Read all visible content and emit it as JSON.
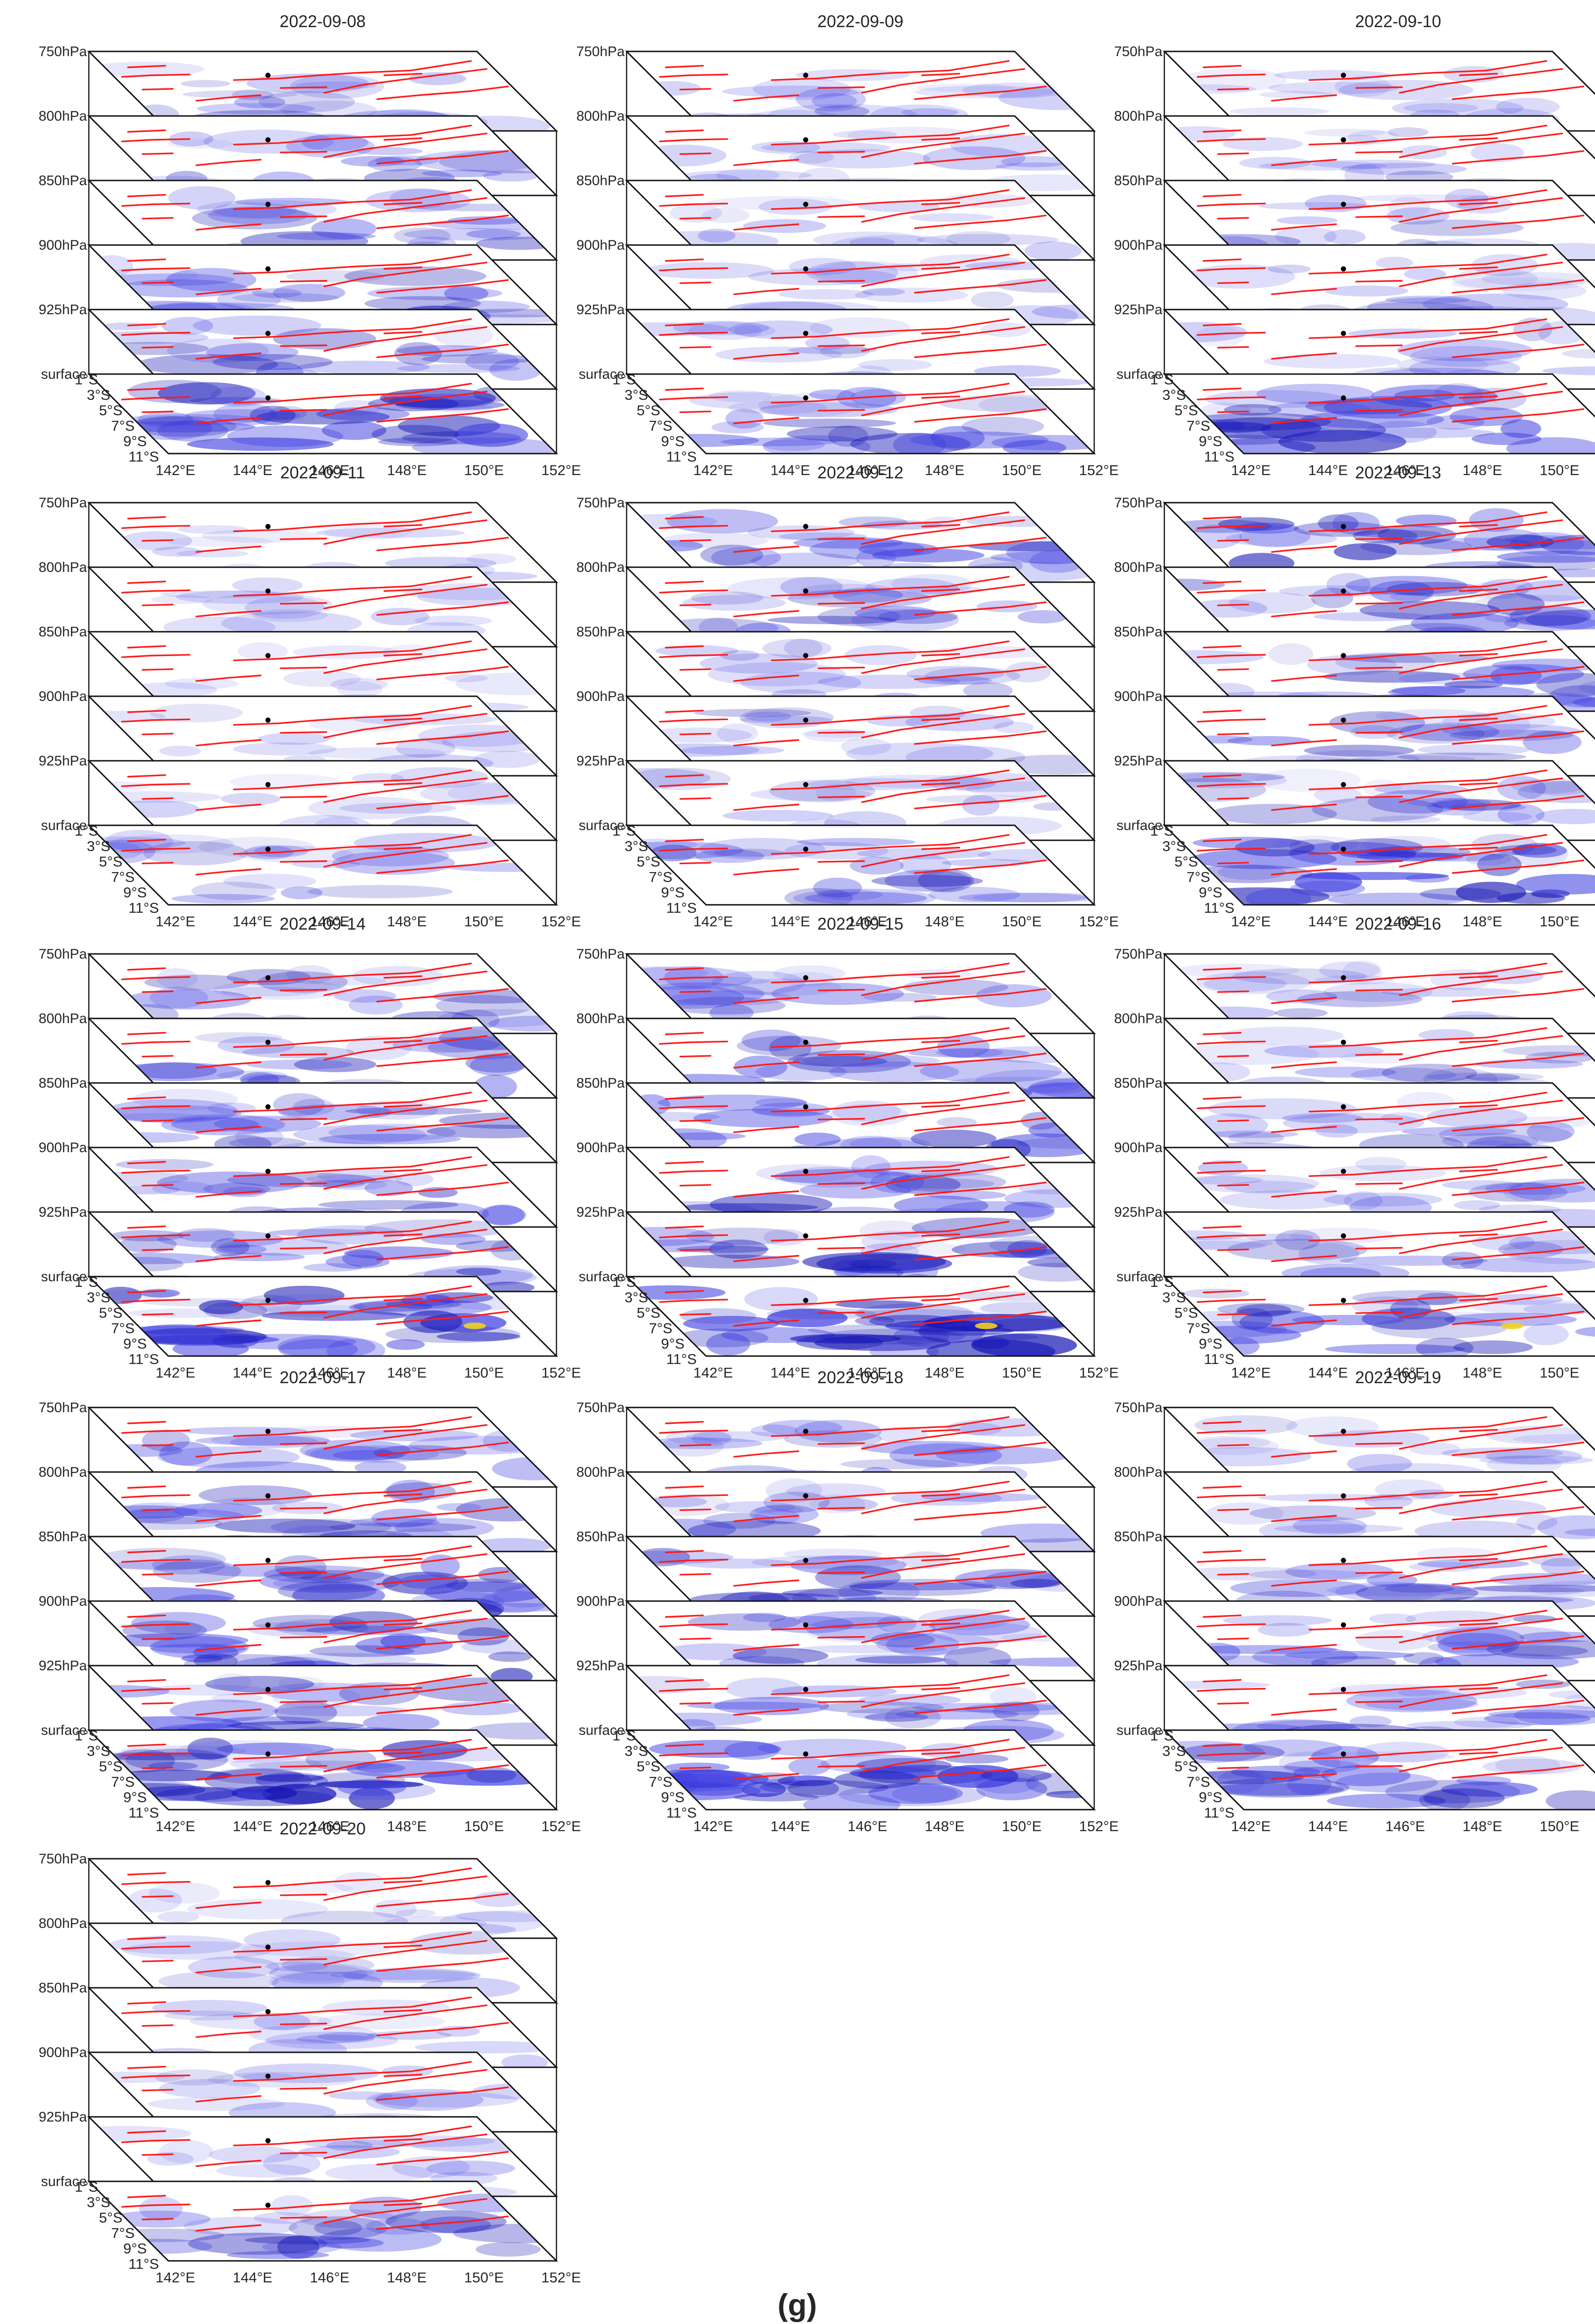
{
  "figure": {
    "panel_label": "(g)"
  },
  "chart_data": {
    "type": "3d-layered-heatmap",
    "description_note": "Stacked map layers per date; each layer shows a blue-to-yellow intensity field over the region with red fault lines and a black epicenter marker.",
    "pressure_levels": [
      "750hPa",
      "800hPa",
      "850hPa",
      "900hPa",
      "925hPa",
      "surface"
    ],
    "longitude_ticks": [
      "142°E",
      "144°E",
      "146°E",
      "148°E",
      "150°E",
      "152°E"
    ],
    "latitude_ticks": [
      "1°S",
      "3°S",
      "5°S",
      "7°S",
      "9°S",
      "11°S"
    ],
    "colors": {
      "field_low": "#ffffff",
      "field_mid": "#3b3be0",
      "field_high": "#1414b4",
      "hotspot": "#f0d020",
      "fault": "#ff1a1a",
      "epicenter": "#000000"
    },
    "panels": [
      {
        "date": "2022-09-08",
        "intensity": [
          0.35,
          0.4,
          0.45,
          0.5,
          0.45,
          0.85
        ],
        "hotspot": false
      },
      {
        "date": "2022-09-09",
        "intensity": [
          0.3,
          0.25,
          0.25,
          0.3,
          0.3,
          0.6
        ],
        "hotspot": false
      },
      {
        "date": "2022-09-10",
        "intensity": [
          0.2,
          0.25,
          0.35,
          0.3,
          0.3,
          0.7
        ],
        "hotspot": false
      },
      {
        "date": "2022-09-11",
        "intensity": [
          0.2,
          0.2,
          0.15,
          0.2,
          0.2,
          0.4
        ],
        "hotspot": false
      },
      {
        "date": "2022-09-12",
        "intensity": [
          0.6,
          0.45,
          0.3,
          0.3,
          0.25,
          0.55
        ],
        "hotspot": false
      },
      {
        "date": "2022-09-13",
        "intensity": [
          0.75,
          0.6,
          0.55,
          0.5,
          0.45,
          0.85
        ],
        "hotspot": false
      },
      {
        "date": "2022-09-14",
        "intensity": [
          0.45,
          0.5,
          0.5,
          0.55,
          0.6,
          0.95
        ],
        "hotspot": true
      },
      {
        "date": "2022-09-15",
        "intensity": [
          0.4,
          0.55,
          0.6,
          0.55,
          0.7,
          0.9
        ],
        "hotspot": true
      },
      {
        "date": "2022-09-16",
        "intensity": [
          0.3,
          0.35,
          0.4,
          0.35,
          0.35,
          0.6
        ],
        "hotspot": true
      },
      {
        "date": "2022-09-17",
        "intensity": [
          0.45,
          0.6,
          0.65,
          0.7,
          0.65,
          0.95
        ],
        "hotspot": false
      },
      {
        "date": "2022-09-18",
        "intensity": [
          0.4,
          0.45,
          0.55,
          0.55,
          0.5,
          0.95
        ],
        "hotspot": false
      },
      {
        "date": "2022-09-19",
        "intensity": [
          0.3,
          0.3,
          0.45,
          0.5,
          0.45,
          0.65
        ],
        "hotspot": false
      },
      {
        "date": "2022-09-20",
        "intensity": [
          0.2,
          0.25,
          0.3,
          0.3,
          0.3,
          0.55
        ],
        "hotspot": false
      }
    ]
  }
}
